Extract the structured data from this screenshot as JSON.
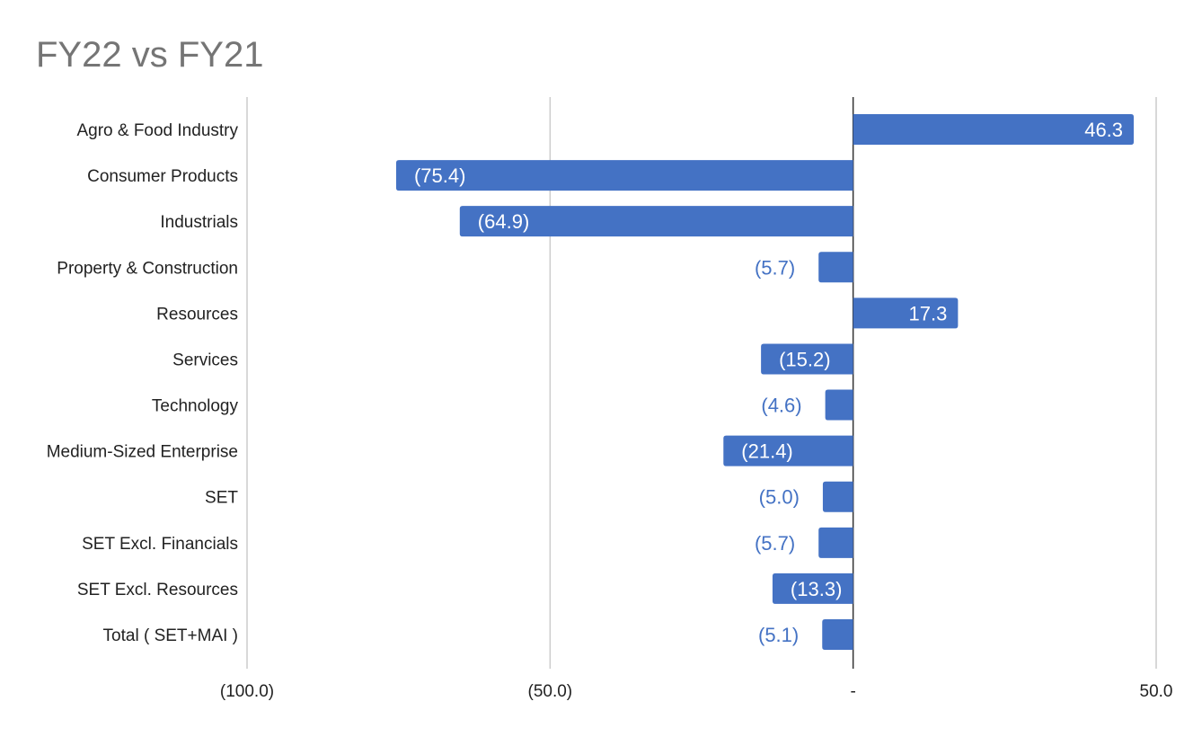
{
  "chart_data": {
    "type": "bar",
    "orientation": "horizontal",
    "title": "FY22 vs FY21",
    "categories": [
      "Agro & Food Industry",
      "Consumer Products",
      "Industrials",
      "Property & Construction",
      "Resources",
      "Services",
      "Technology",
      "Medium-Sized Enterprise",
      "SET",
      "SET Excl. Financials",
      "SET Excl. Resources",
      "Total ( SET+MAI )"
    ],
    "values": [
      46.3,
      -75.4,
      -64.9,
      -5.7,
      17.3,
      -15.2,
      -4.6,
      -21.4,
      -5.0,
      -5.7,
      -13.3,
      -5.1
    ],
    "data_labels": [
      "46.3",
      "(75.4)",
      "(64.9)",
      "(5.7)",
      "17.3",
      "(15.2)",
      "(4.6)",
      "(21.4)",
      "(5.0)",
      "(5.7)",
      "(13.3)",
      "(5.1)"
    ],
    "xlim": [
      -100,
      50
    ],
    "x_ticks": [
      -100,
      -50,
      0,
      50
    ],
    "x_tick_labels": [
      "(100.0)",
      "(50.0)",
      "-",
      "50.0"
    ],
    "grid": true,
    "legend": "none",
    "bar_color": "#4472c4"
  }
}
